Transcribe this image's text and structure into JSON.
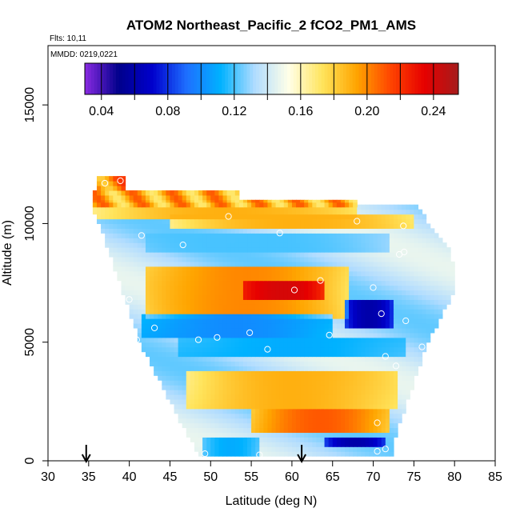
{
  "chart_data": {
    "type": "heatmap",
    "title": "ATOM2 Northeast_Pacific_2 fCO2_PM1_AMS",
    "flights_label": "Flts: 10,11",
    "date_label": "MMDD: 0219,0221",
    "xlabel": "Latitude (deg N)",
    "ylabel": "Altitude (m)",
    "xlim": [
      30,
      85
    ],
    "ylim": [
      0,
      17500
    ],
    "x_ticks": [
      30,
      35,
      40,
      45,
      50,
      55,
      60,
      65,
      70,
      75,
      80,
      85
    ],
    "x_tick_labels": [
      "30",
      "35",
      "40",
      "45",
      "50",
      "55",
      "60",
      "65",
      "70",
      "75",
      "80",
      "85"
    ],
    "y_ticks": [
      0,
      5000,
      10000,
      15000
    ],
    "y_tick_labels": [
      "0",
      "5000",
      "10000",
      "15000"
    ],
    "colorbar": {
      "range": [
        0.03,
        0.255
      ],
      "ticks": [
        0.04,
        0.06,
        0.08,
        0.1,
        0.12,
        0.14,
        0.16,
        0.18,
        0.2,
        0.22,
        0.24
      ],
      "labeled_ticks": [
        0.04,
        0.08,
        0.12,
        0.16,
        0.2,
        0.24
      ],
      "tick_labels": [
        "0.04",
        "0.08",
        "0.12",
        "0.16",
        "0.20",
        "0.24"
      ],
      "colors": [
        "#8a2be2",
        "#00008b",
        "#0000cd",
        "#1e6fff",
        "#00b2ff",
        "#b0dcff",
        "#ffffe8",
        "#ffe45c",
        "#ffa500",
        "#ff4500",
        "#e60000",
        "#a51c1c"
      ]
    },
    "field_envelope": [
      {
        "alt": 200,
        "left": 49.0,
        "right": 72.0
      },
      {
        "alt": 1000,
        "left": 47.5,
        "right": 72.5
      },
      {
        "alt": 2000,
        "left": 46.0,
        "right": 73.5
      },
      {
        "alt": 3000,
        "left": 44.5,
        "right": 74.5
      },
      {
        "alt": 4000,
        "left": 43.0,
        "right": 75.5
      },
      {
        "alt": 5000,
        "left": 41.5,
        "right": 76.5
      },
      {
        "alt": 6000,
        "left": 40.5,
        "right": 78.0
      },
      {
        "alt": 7000,
        "left": 39.5,
        "right": 79.5
      },
      {
        "alt": 8000,
        "left": 38.5,
        "right": 80.0
      },
      {
        "alt": 9000,
        "left": 37.5,
        "right": 79.0
      },
      {
        "alt": 10000,
        "left": 36.5,
        "right": 76.5
      },
      {
        "alt": 10700,
        "left": 35.5,
        "right": 75.5
      }
    ],
    "features": [
      {
        "kind": "band",
        "alt_range": [
          10300,
          11000
        ],
        "lat_range": [
          35.5,
          68.0
        ],
        "value": 0.19
      },
      {
        "kind": "band",
        "alt_range": [
          11000,
          11400
        ],
        "lat_range": [
          35.5,
          53.5
        ],
        "value": 0.19
      },
      {
        "kind": "band",
        "alt_range": [
          11400,
          12000
        ],
        "lat_range": [
          36.0,
          39.5
        ],
        "value": 0.2
      },
      {
        "kind": "band",
        "alt_range": [
          9800,
          10300
        ],
        "lat_range": [
          45.0,
          75.0
        ],
        "value": 0.19
      },
      {
        "kind": "band",
        "alt_range": [
          8900,
          9500
        ],
        "lat_range": [
          42.0,
          72.0
        ],
        "value": 0.12
      },
      {
        "kind": "band",
        "alt_range": [
          6000,
          8200
        ],
        "lat_range": [
          42.0,
          67.0
        ],
        "value": 0.2
      },
      {
        "kind": "band",
        "alt_range": [
          6900,
          7500
        ],
        "lat_range": [
          54.0,
          64.0
        ],
        "value": 0.24
      },
      {
        "kind": "band",
        "alt_range": [
          5200,
          6200
        ],
        "lat_range": [
          41.5,
          65.0
        ],
        "value": 0.1
      },
      {
        "kind": "band",
        "alt_range": [
          5600,
          6800
        ],
        "lat_range": [
          66.5,
          72.5
        ],
        "value": 0.06
      },
      {
        "kind": "band",
        "alt_range": [
          4400,
          5100
        ],
        "lat_range": [
          46.0,
          74.0
        ],
        "value": 0.11
      },
      {
        "kind": "band",
        "alt_range": [
          2200,
          3800
        ],
        "lat_range": [
          47.0,
          73.0
        ],
        "value": 0.19
      },
      {
        "kind": "band",
        "alt_range": [
          1300,
          2200
        ],
        "lat_range": [
          55.0,
          72.0
        ],
        "value": 0.21
      },
      {
        "kind": "band",
        "alt_range": [
          200,
          900
        ],
        "lat_range": [
          49.0,
          56.0
        ],
        "value": 0.11
      },
      {
        "kind": "band",
        "alt_range": [
          600,
          1000
        ],
        "lat_range": [
          64.0,
          71.5
        ],
        "value": 0.06
      }
    ],
    "points": [
      {
        "lat": 37.0,
        "alt": 11700
      },
      {
        "lat": 38.9,
        "alt": 11800
      },
      {
        "lat": 52.2,
        "alt": 10300
      },
      {
        "lat": 68.0,
        "alt": 10100
      },
      {
        "lat": 73.7,
        "alt": 9900
      },
      {
        "lat": 41.5,
        "alt": 9500
      },
      {
        "lat": 58.5,
        "alt": 9600
      },
      {
        "lat": 46.6,
        "alt": 9100
      },
      {
        "lat": 73.2,
        "alt": 8700
      },
      {
        "lat": 73.8,
        "alt": 8800
      },
      {
        "lat": 63.5,
        "alt": 7600
      },
      {
        "lat": 60.3,
        "alt": 7200
      },
      {
        "lat": 70.0,
        "alt": 7300
      },
      {
        "lat": 40.0,
        "alt": 6800
      },
      {
        "lat": 71.0,
        "alt": 6200
      },
      {
        "lat": 74.0,
        "alt": 5900
      },
      {
        "lat": 43.1,
        "alt": 5600
      },
      {
        "lat": 54.8,
        "alt": 5400
      },
      {
        "lat": 64.6,
        "alt": 5300
      },
      {
        "lat": 40.9,
        "alt": 5100
      },
      {
        "lat": 50.8,
        "alt": 5200
      },
      {
        "lat": 48.5,
        "alt": 5100
      },
      {
        "lat": 57.0,
        "alt": 4700
      },
      {
        "lat": 76.0,
        "alt": 4800
      },
      {
        "lat": 71.5,
        "alt": 4400
      },
      {
        "lat": 72.8,
        "alt": 4000
      },
      {
        "lat": 70.5,
        "alt": 1600
      },
      {
        "lat": 70.5,
        "alt": 400
      },
      {
        "lat": 71.5,
        "alt": 500
      },
      {
        "lat": 49.3,
        "alt": 300
      },
      {
        "lat": 56.0,
        "alt": 250
      }
    ],
    "arrows": [
      34.7,
      61.2
    ]
  }
}
